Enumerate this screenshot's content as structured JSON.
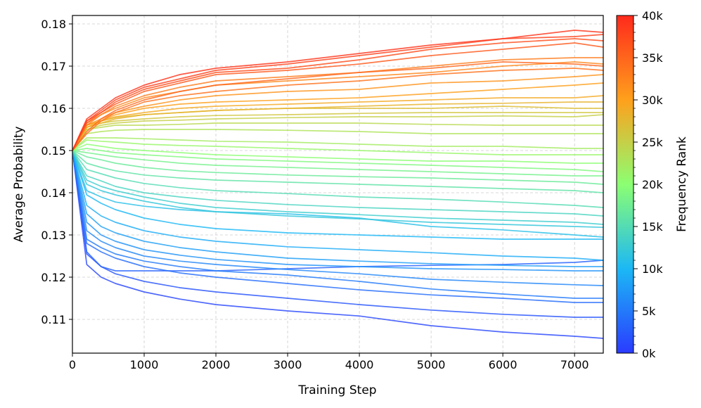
{
  "chart_data": {
    "type": "line",
    "xlabel": "Training Step",
    "ylabel": "Average Probability",
    "xlim": [
      0,
      7400
    ],
    "ylim": [
      0.102,
      0.182
    ],
    "grid": true,
    "xticks": [
      "0",
      "1000",
      "2000",
      "3000",
      "4000",
      "5000",
      "6000",
      "7000"
    ],
    "yticks": [
      "0.11",
      "0.12",
      "0.13",
      "0.14",
      "0.15",
      "0.16",
      "0.17",
      "0.18"
    ],
    "colorbar": {
      "label": "Frequency Rank",
      "range": [
        0,
        40000
      ],
      "tick_labels": [
        "0k",
        "5k",
        "10k",
        "15k",
        "20k",
        "25k",
        "30k",
        "35k",
        "40k"
      ],
      "colormap": "rainbow (blue → cyan → green → orange → red)",
      "colors": [
        "#2a3bff",
        "#1cb8f5",
        "#8cff72",
        "#ffa01c",
        "#ff2a1c"
      ]
    },
    "x": [
      0,
      200,
      400,
      600,
      1000,
      1500,
      2000,
      3000,
      4000,
      5000,
      6000,
      7000,
      7400
    ],
    "series": [
      {
        "rank": 39000,
        "values": [
          0.15,
          0.1575,
          0.16,
          0.1625,
          0.1655,
          0.168,
          0.1695,
          0.171,
          0.173,
          0.175,
          0.1765,
          0.1785,
          0.178
        ]
      },
      {
        "rank": 38000,
        "values": [
          0.15,
          0.157,
          0.1595,
          0.162,
          0.165,
          0.167,
          0.169,
          0.1705,
          0.1725,
          0.1745,
          0.1765,
          0.177,
          0.1775
        ]
      },
      {
        "rank": 37000,
        "values": [
          0.15,
          0.157,
          0.159,
          0.1615,
          0.1645,
          0.1665,
          0.1685,
          0.1695,
          0.1715,
          0.174,
          0.1755,
          0.1765,
          0.176
        ]
      },
      {
        "rank": 36000,
        "values": [
          0.15,
          0.1565,
          0.159,
          0.161,
          0.164,
          0.166,
          0.168,
          0.169,
          0.1705,
          0.1725,
          0.174,
          0.1755,
          0.1745
        ]
      },
      {
        "rank": 35000,
        "values": [
          0.15,
          0.1545,
          0.1575,
          0.1595,
          0.162,
          0.164,
          0.1655,
          0.167,
          0.1685,
          0.1695,
          0.171,
          0.1705,
          0.17
        ]
      },
      {
        "rank": 34000,
        "values": [
          0.15,
          0.154,
          0.157,
          0.159,
          0.1615,
          0.163,
          0.164,
          0.1655,
          0.1665,
          0.168,
          0.169,
          0.1695,
          0.169
        ]
      },
      {
        "rank": 33000,
        "values": [
          0.15,
          0.156,
          0.1585,
          0.1605,
          0.163,
          0.165,
          0.1665,
          0.1675,
          0.1685,
          0.17,
          0.1715,
          0.172,
          0.172
        ]
      },
      {
        "rank": 32000,
        "values": [
          0.15,
          0.1565,
          0.1585,
          0.16,
          0.1625,
          0.164,
          0.1655,
          0.1665,
          0.1675,
          0.1685,
          0.17,
          0.171,
          0.1705
        ]
      },
      {
        "rank": 31000,
        "values": [
          0.15,
          0.156,
          0.1575,
          0.159,
          0.1605,
          0.162,
          0.163,
          0.164,
          0.1645,
          0.166,
          0.1665,
          0.1675,
          0.168
        ]
      },
      {
        "rank": 30000,
        "values": [
          0.15,
          0.1555,
          0.157,
          0.1585,
          0.16,
          0.161,
          0.1615,
          0.162,
          0.1625,
          0.1635,
          0.1645,
          0.1655,
          0.166
        ]
      },
      {
        "rank": 29000,
        "values": [
          0.15,
          0.156,
          0.157,
          0.158,
          0.159,
          0.16,
          0.1605,
          0.161,
          0.1615,
          0.162,
          0.1625,
          0.1625,
          0.163
        ]
      },
      {
        "rank": 28000,
        "values": [
          0.15,
          0.1555,
          0.1565,
          0.1575,
          0.1585,
          0.159,
          0.1595,
          0.16,
          0.1605,
          0.161,
          0.1612,
          0.1615,
          0.1615
        ]
      },
      {
        "rank": 27000,
        "values": [
          0.15,
          0.156,
          0.157,
          0.1578,
          0.1585,
          0.159,
          0.1595,
          0.16,
          0.16,
          0.16,
          0.1605,
          0.16,
          0.16
        ]
      },
      {
        "rank": 26000,
        "values": [
          0.15,
          0.1555,
          0.1565,
          0.157,
          0.1575,
          0.158,
          0.1583,
          0.1585,
          0.1588,
          0.159,
          0.159,
          0.159,
          0.159
        ]
      },
      {
        "rank": 25000,
        "values": [
          0.15,
          0.155,
          0.156,
          0.1565,
          0.157,
          0.1572,
          0.1575,
          0.1578,
          0.158,
          0.158,
          0.1582,
          0.158,
          0.1585
        ]
      },
      {
        "rank": 24000,
        "values": [
          0.15,
          0.155,
          0.1555,
          0.156,
          0.156,
          0.1562,
          0.1565,
          0.1565,
          0.1565,
          0.1562,
          0.156,
          0.156,
          0.156
        ]
      },
      {
        "rank": 23000,
        "values": [
          0.15,
          0.154,
          0.1545,
          0.1548,
          0.155,
          0.155,
          0.155,
          0.1548,
          0.1545,
          0.154,
          0.154,
          0.154,
          0.154
        ]
      },
      {
        "rank": 22000,
        "values": [
          0.15,
          0.153,
          0.153,
          0.153,
          0.1528,
          0.1525,
          0.1522,
          0.152,
          0.1515,
          0.151,
          0.151,
          0.1505,
          0.1505
        ]
      },
      {
        "rank": 21000,
        "values": [
          0.15,
          0.1525,
          0.1522,
          0.152,
          0.1515,
          0.1512,
          0.151,
          0.1505,
          0.15,
          0.1495,
          0.149,
          0.149,
          0.149
        ]
      },
      {
        "rank": 20000,
        "values": [
          0.15,
          0.1515,
          0.151,
          0.1505,
          0.15,
          0.1495,
          0.149,
          0.1485,
          0.148,
          0.1475,
          0.1475,
          0.147,
          0.147
        ]
      },
      {
        "rank": 19000,
        "values": [
          0.15,
          0.1505,
          0.15,
          0.1495,
          0.149,
          0.1485,
          0.148,
          0.1475,
          0.147,
          0.1465,
          0.146,
          0.1455,
          0.145
        ]
      },
      {
        "rank": 18000,
        "values": [
          0.15,
          0.1495,
          0.149,
          0.1485,
          0.1478,
          0.147,
          0.1465,
          0.146,
          0.1455,
          0.145,
          0.1445,
          0.144,
          0.144
        ]
      },
      {
        "rank": 17000,
        "values": [
          0.15,
          0.1485,
          0.1478,
          0.147,
          0.146,
          0.1452,
          0.1448,
          0.1442,
          0.1438,
          0.1435,
          0.143,
          0.1425,
          0.142
        ]
      },
      {
        "rank": 16000,
        "values": [
          0.15,
          0.147,
          0.146,
          0.1452,
          0.1442,
          0.1435,
          0.143,
          0.1425,
          0.142,
          0.1415,
          0.141,
          0.1405,
          0.14
        ]
      },
      {
        "rank": 15000,
        "values": [
          0.15,
          0.1455,
          0.1445,
          0.1435,
          0.1422,
          0.1412,
          0.1405,
          0.1398,
          0.139,
          0.1385,
          0.1378,
          0.137,
          0.1365
        ]
      },
      {
        "rank": 14000,
        "values": [
          0.15,
          0.144,
          0.1428,
          0.1415,
          0.14,
          0.139,
          0.1382,
          0.1372,
          0.1365,
          0.136,
          0.1355,
          0.135,
          0.1345
        ]
      },
      {
        "rank": 13000,
        "values": [
          0.15,
          0.143,
          0.1415,
          0.1405,
          0.139,
          0.1375,
          0.1365,
          0.1355,
          0.1348,
          0.134,
          0.1335,
          0.133,
          0.1325
        ]
      },
      {
        "rank": 12000,
        "values": [
          0.15,
          0.142,
          0.1405,
          0.1395,
          0.138,
          0.1365,
          0.1355,
          0.1345,
          0.1338,
          0.133,
          0.1325,
          0.132,
          0.1318
        ]
      },
      {
        "rank": 11000,
        "values": [
          0.15,
          0.1405,
          0.139,
          0.1378,
          0.1368,
          0.136,
          0.1355,
          0.135,
          0.134,
          0.132,
          0.1312,
          0.13,
          0.1295
        ]
      },
      {
        "rank": 10000,
        "values": [
          0.15,
          0.1395,
          0.1375,
          0.136,
          0.134,
          0.1325,
          0.1315,
          0.1305,
          0.13,
          0.1295,
          0.129,
          0.129,
          0.129
        ]
      },
      {
        "rank": 9000,
        "values": [
          0.15,
          0.137,
          0.1345,
          0.133,
          0.131,
          0.1295,
          0.1285,
          0.1272,
          0.1265,
          0.1258,
          0.125,
          0.1245,
          0.124
        ]
      },
      {
        "rank": 8000,
        "values": [
          0.15,
          0.135,
          0.132,
          0.1305,
          0.1285,
          0.127,
          0.126,
          0.1245,
          0.1238,
          0.1232,
          0.1228,
          0.1225,
          0.1225
        ]
      },
      {
        "rank": 7000,
        "values": [
          0.15,
          0.133,
          0.13,
          0.1285,
          0.1265,
          0.1252,
          0.1242,
          0.123,
          0.1225,
          0.122,
          0.1218,
          0.1215,
          0.1215
        ]
      },
      {
        "rank": 6000,
        "values": [
          0.15,
          0.131,
          0.1285,
          0.127,
          0.125,
          0.1238,
          0.123,
          0.1218,
          0.1208,
          0.1195,
          0.1188,
          0.1182,
          0.118
        ]
      },
      {
        "rank": 5000,
        "values": [
          0.15,
          0.129,
          0.127,
          0.1255,
          0.1238,
          0.1225,
          0.1215,
          0.1205,
          0.119,
          0.1172,
          0.116,
          0.115,
          0.115
        ]
      },
      {
        "rank": 4000,
        "values": [
          0.15,
          0.128,
          0.126,
          0.1245,
          0.1225,
          0.121,
          0.12,
          0.1185,
          0.117,
          0.1158,
          0.115,
          0.114,
          0.114
        ]
      },
      {
        "rank": 3000,
        "values": [
          0.15,
          0.126,
          0.1225,
          0.1215,
          0.1215,
          0.1215,
          0.1215,
          0.122,
          0.1225,
          0.1228,
          0.123,
          0.1235,
          0.124
        ]
      },
      {
        "rank": 2000,
        "values": [
          0.15,
          0.1255,
          0.1225,
          0.1208,
          0.119,
          0.1175,
          0.1165,
          0.115,
          0.1135,
          0.1122,
          0.1112,
          0.1105,
          0.1105
        ]
      },
      {
        "rank": 1000,
        "values": [
          0.15,
          0.123,
          0.12,
          0.1185,
          0.1165,
          0.1148,
          0.1135,
          0.112,
          0.1108,
          0.1085,
          0.107,
          0.106,
          0.1055
        ]
      }
    ]
  }
}
